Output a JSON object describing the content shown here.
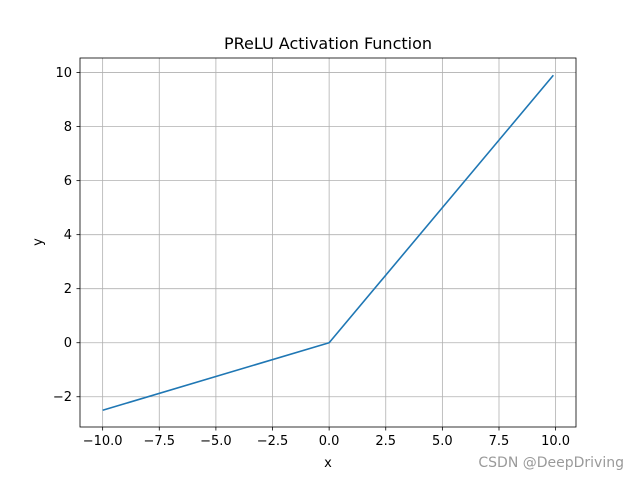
{
  "chart_data": {
    "type": "line",
    "title": "PReLU Activation Function",
    "xlabel": "x",
    "ylabel": "y",
    "xlim": [
      -11.0,
      10.9
    ],
    "ylim": [
      -3.12,
      10.54
    ],
    "grid": true,
    "x_ticks": [
      -10.0,
      -7.5,
      -5.0,
      -2.5,
      0.0,
      2.5,
      5.0,
      7.5,
      10.0
    ],
    "x_tick_labels": [
      "−10.0",
      "−7.5",
      "−5.0",
      "−2.5",
      "0.0",
      "2.5",
      "5.0",
      "7.5",
      "10.0"
    ],
    "y_ticks": [
      -2,
      0,
      2,
      4,
      6,
      8,
      10
    ],
    "y_tick_labels": [
      "−2",
      "0",
      "2",
      "4",
      "6",
      "8",
      "10"
    ],
    "series": [
      {
        "color": "#1f77b4",
        "x": [
          -10.0,
          0.0,
          9.9
        ],
        "y": [
          -2.5,
          0.0,
          9.9
        ]
      }
    ]
  },
  "watermark": "CSDN @DeepDriving"
}
